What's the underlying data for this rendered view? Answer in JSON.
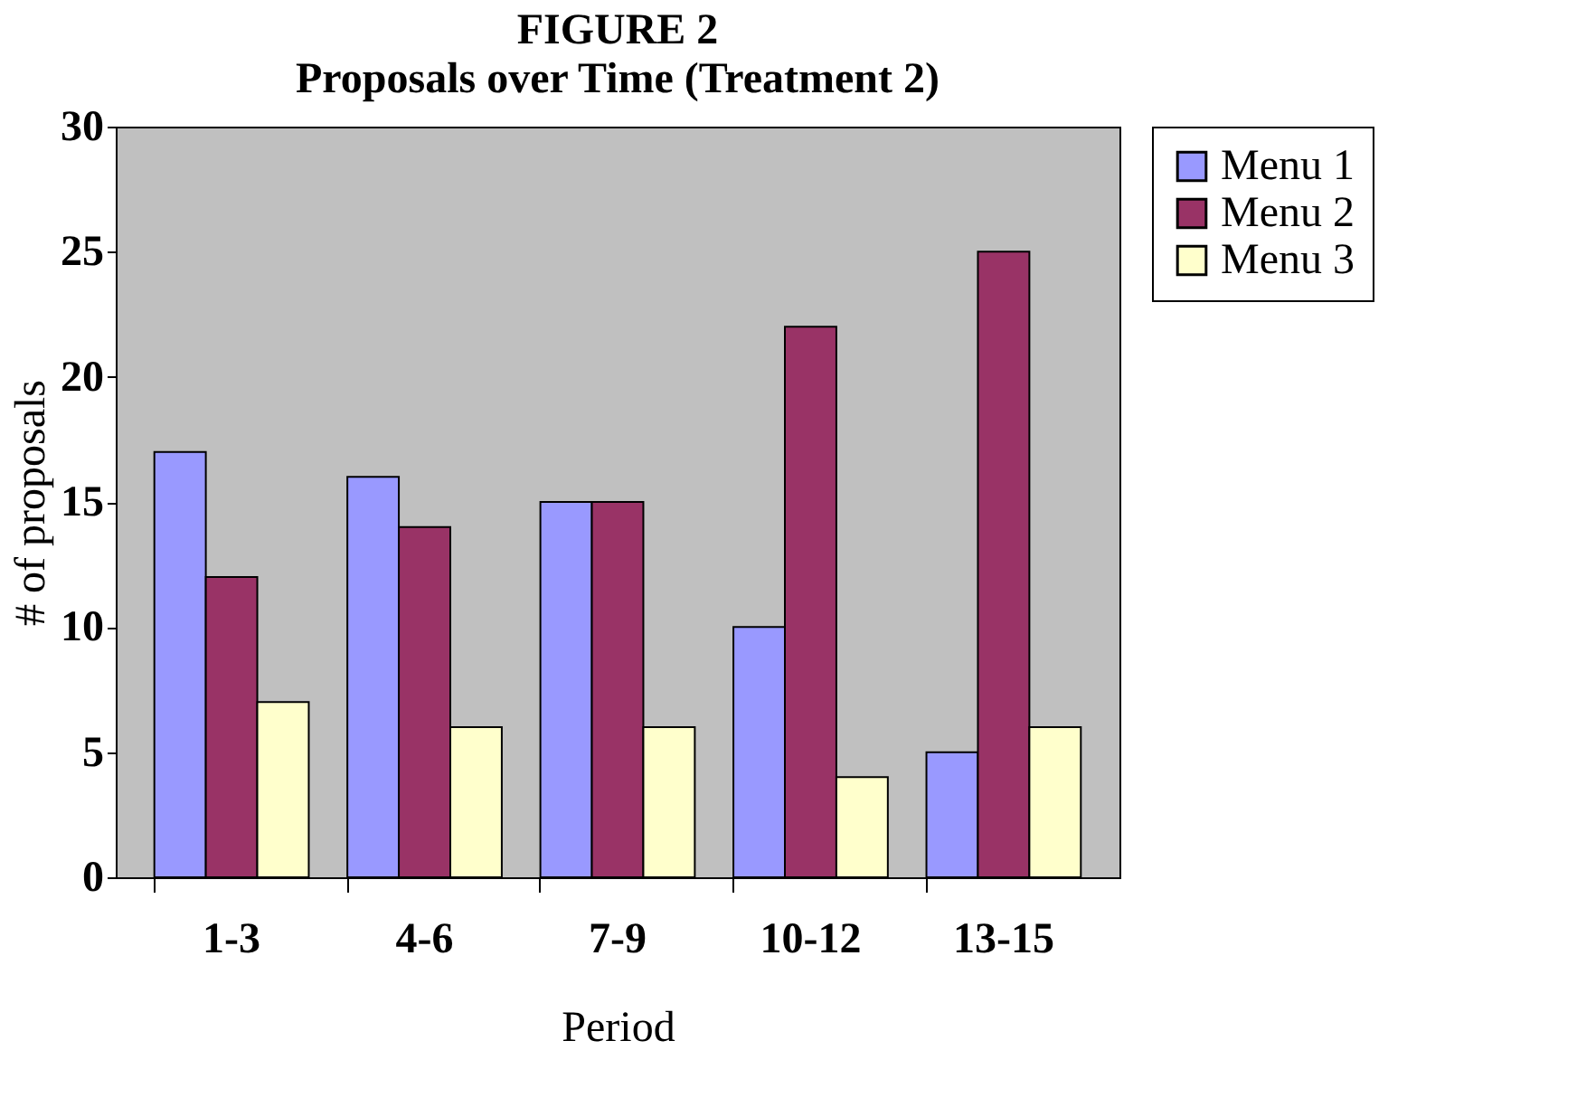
{
  "chart_data": {
    "type": "bar",
    "title": "FIGURE 2",
    "subtitle": "Proposals over Time (Treatment 2)",
    "xlabel": "Period",
    "ylabel": "# of proposals",
    "categories": [
      "1-3",
      "4-6",
      "7-9",
      "10-12",
      "13-15"
    ],
    "series": [
      {
        "name": "Menu 1",
        "color": "#9999ff",
        "values": [
          17,
          16,
          15,
          10,
          5
        ]
      },
      {
        "name": "Menu 2",
        "color": "#993366",
        "values": [
          12,
          14,
          15,
          22,
          25
        ]
      },
      {
        "name": "Menu 3",
        "color": "#ffffcc",
        "values": [
          7,
          6,
          6,
          4,
          6
        ]
      }
    ],
    "ylim": [
      0,
      30
    ],
    "yticks": [
      0,
      5,
      10,
      15,
      20,
      25,
      30
    ],
    "grid": false,
    "legend": "right"
  }
}
